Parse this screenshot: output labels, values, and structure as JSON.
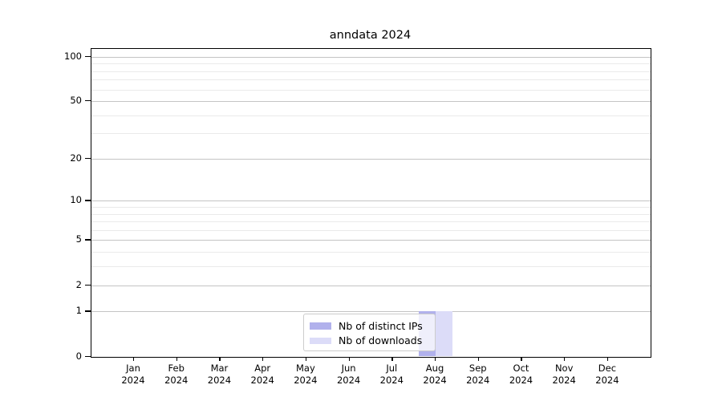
{
  "figure": {
    "background": "#ffffff",
    "axis_color": "#000000",
    "text_color": "#000000"
  },
  "chart_data": {
    "type": "bar",
    "title": "anndata 2024",
    "categories": [
      "Jan",
      "Feb",
      "Mar",
      "Apr",
      "May",
      "Jun",
      "Jul",
      "Aug",
      "Sep",
      "Oct",
      "Nov",
      "Dec"
    ],
    "category_year": "2024",
    "series": [
      {
        "name": "Nb of distinct IPs",
        "color": "#b1b1ec",
        "values": [
          0,
          0,
          0,
          0,
          0,
          0,
          0,
          1,
          0,
          0,
          0,
          0
        ]
      },
      {
        "name": "Nb of downloads",
        "color": "#dcdcf8",
        "values": [
          0,
          0,
          0,
          0,
          0,
          0,
          0,
          1,
          0,
          0,
          0,
          0
        ]
      }
    ],
    "y_axis": {
      "scale": "log1p",
      "min": 0,
      "max": 113,
      "major_ticks": [
        0,
        1,
        2,
        5,
        10,
        20,
        50,
        100
      ],
      "minor_ticks": [
        3,
        4,
        6,
        7,
        8,
        9,
        30,
        40,
        60,
        70,
        80,
        90
      ]
    },
    "x_axis": {
      "label_lines": 2
    },
    "grid": {
      "orientation": "horizontal",
      "major_color": "#c4c4c4",
      "minor_color": "#eaeaea"
    },
    "legend": {
      "position": "bottom-center",
      "frame_alpha": 0.8,
      "entries": [
        "Nb of distinct IPs",
        "Nb of downloads"
      ]
    }
  }
}
